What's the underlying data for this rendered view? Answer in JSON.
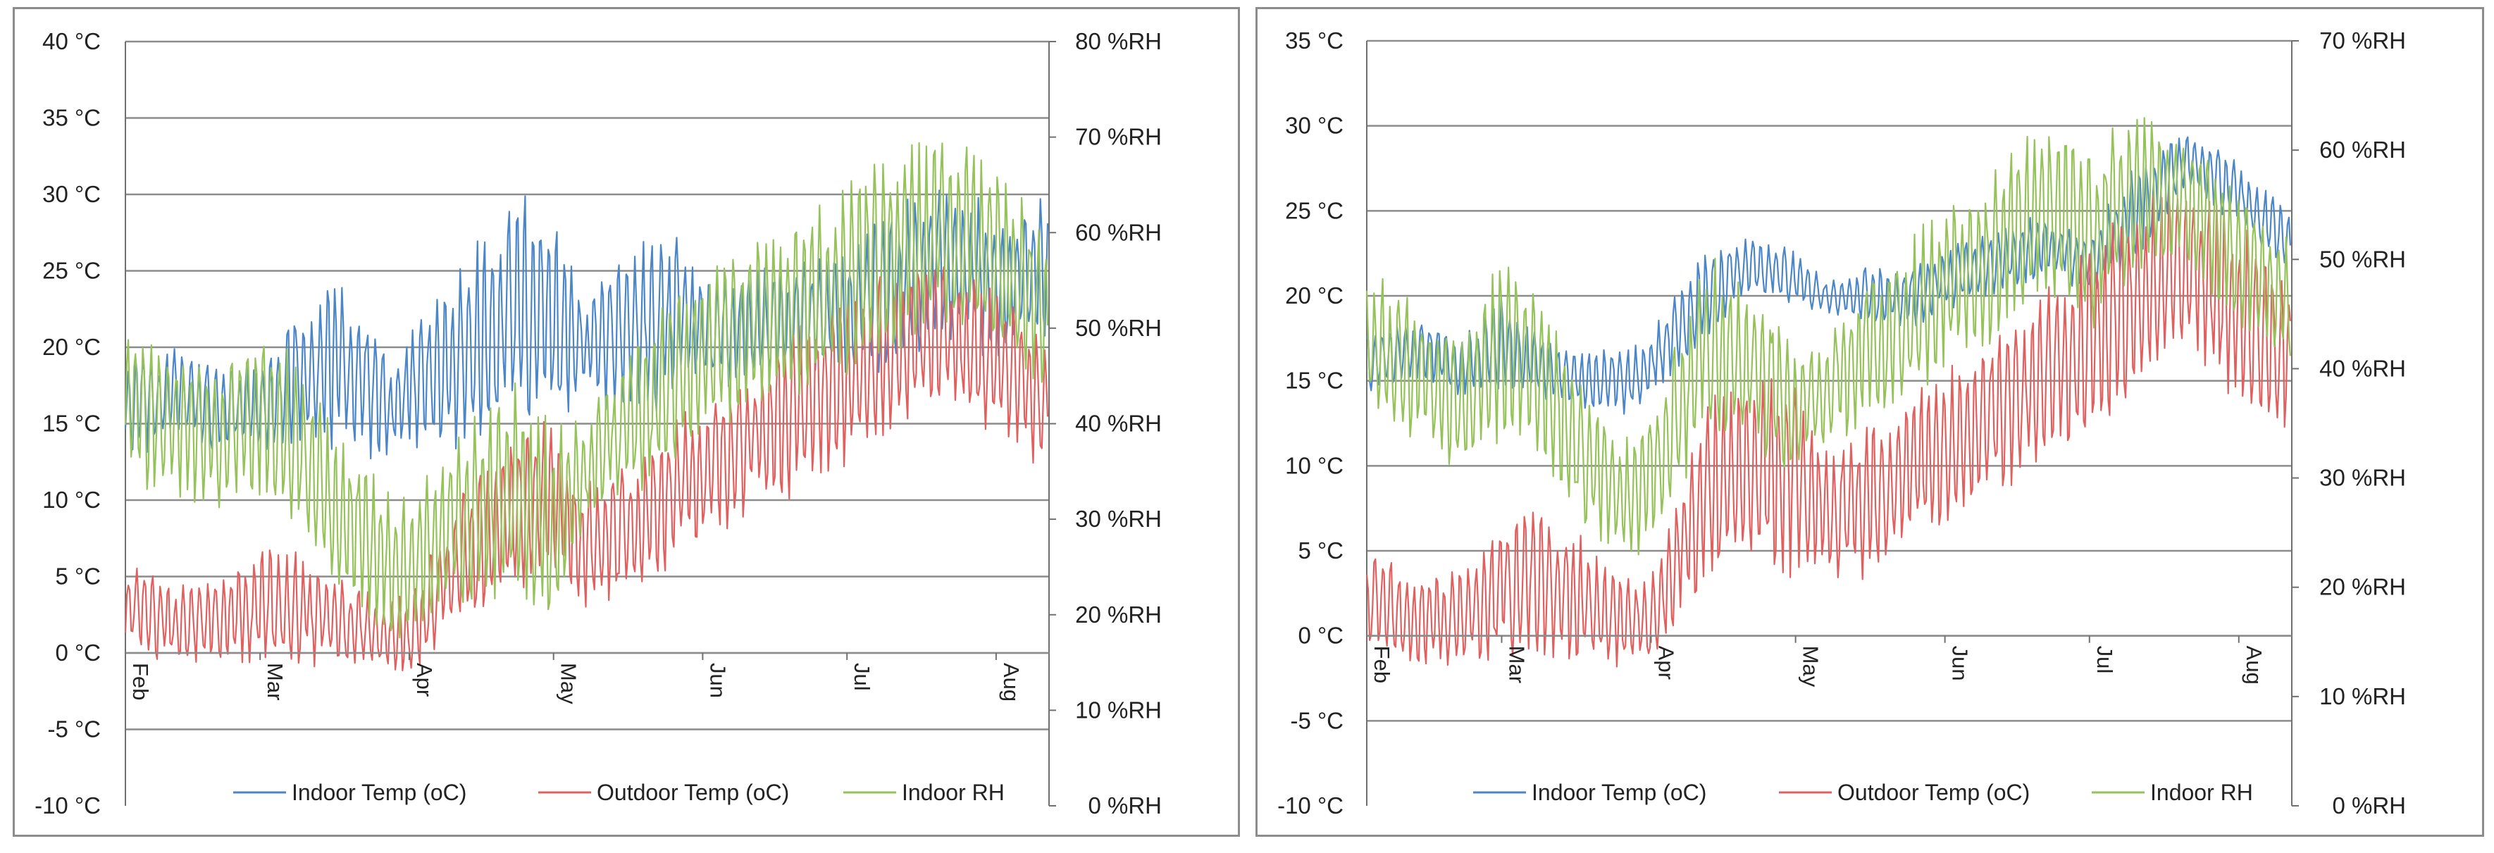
{
  "colors": {
    "indoor_temp": "#4a86c8",
    "outdoor_temp": "#e06060",
    "indoor_rh": "#96c25a",
    "grid": "#8c8c8c",
    "axis": "#707070"
  },
  "chart_data": [
    {
      "type": "line",
      "title": "",
      "xlabel": "",
      "ylabel": "",
      "y_left": {
        "min": -10,
        "max": 40,
        "step": 5,
        "tick_labels": [
          "-10 °C",
          "-5 °C",
          "0 °C",
          "5 °C",
          "10 °C",
          "15 °C",
          "20 °C",
          "25 °C",
          "30 °C",
          "35 °C",
          "40 °C"
        ]
      },
      "y_right": {
        "min": 0,
        "max": 80,
        "step": 10,
        "tick_labels": [
          "0 %RH",
          "10 %RH",
          "20 %RH",
          "30 %RH",
          "40 %RH",
          "50 %RH",
          "60 %RH",
          "70 %RH",
          "80 %RH"
        ]
      },
      "x_axis_at_temp": 0,
      "month_labels": [
        "Feb",
        "Mar",
        "Apr",
        "May",
        "Jun",
        "Jul",
        "Aug"
      ],
      "month_positions_days": [
        0,
        28,
        59,
        89,
        120,
        150,
        181
      ],
      "x_range_days": [
        0,
        192
      ],
      "legend": [
        "Indoor Temp (oC)",
        "Outdoor Temp (oC)",
        "Indoor RH"
      ],
      "legend_position": "bottom",
      "series": [
        {
          "name": "Indoor Temp (oC)",
          "axis": "left",
          "color_key": "indoor_temp",
          "days": [
            0,
            10,
            20,
            28,
            35,
            45,
            55,
            59,
            70,
            80,
            89,
            95,
            105,
            115,
            120,
            130,
            140,
            150,
            160,
            170,
            181,
            192
          ],
          "values": [
            16,
            17,
            16,
            16,
            18,
            19,
            16,
            17,
            20,
            22,
            22,
            20,
            21,
            22,
            21,
            21,
            22,
            22,
            24,
            26,
            24,
            25
          ],
          "amplitude": [
            4,
            3,
            3,
            3,
            5,
            6,
            4,
            4,
            7,
            8,
            8,
            4,
            6,
            6,
            4,
            4,
            4,
            5,
            6,
            6,
            5,
            5
          ]
        },
        {
          "name": "Outdoor Temp (oC)",
          "axis": "left",
          "color_key": "outdoor_temp",
          "days": [
            0,
            10,
            20,
            28,
            35,
            45,
            55,
            59,
            70,
            80,
            89,
            95,
            105,
            115,
            120,
            130,
            140,
            150,
            160,
            170,
            181,
            192
          ],
          "values": [
            3,
            2,
            2,
            3,
            3,
            2,
            1,
            1,
            6,
            9,
            10,
            7,
            8,
            11,
            12,
            14,
            16,
            18,
            20,
            21,
            19,
            16
          ],
          "amplitude": [
            3,
            3,
            3,
            4,
            4,
            3,
            3,
            3,
            5,
            6,
            6,
            4,
            5,
            5,
            5,
            5,
            6,
            6,
            6,
            5,
            5,
            5
          ]
        },
        {
          "name": "Indoor RH",
          "axis": "right",
          "color_key": "indoor_rh",
          "days": [
            0,
            10,
            20,
            28,
            35,
            45,
            55,
            59,
            70,
            80,
            89,
            95,
            105,
            115,
            120,
            130,
            140,
            150,
            160,
            170,
            181,
            192
          ],
          "values": [
            42,
            40,
            38,
            42,
            38,
            30,
            25,
            25,
            30,
            33,
            28,
            35,
            40,
            45,
            47,
            50,
            52,
            55,
            58,
            60,
            58,
            50
          ],
          "amplitude": [
            8,
            8,
            8,
            10,
            10,
            9,
            8,
            8,
            10,
            12,
            12,
            6,
            8,
            10,
            9,
            10,
            10,
            11,
            12,
            11,
            11,
            10
          ]
        }
      ]
    },
    {
      "type": "line",
      "title": "",
      "xlabel": "",
      "ylabel": "",
      "y_left": {
        "min": -10,
        "max": 35,
        "step": 5,
        "tick_labels": [
          "-10 °C",
          "-5 °C",
          "0 °C",
          "5 °C",
          "10 °C",
          "15 °C",
          "20 °C",
          "25 °C",
          "30 °C",
          "35 °C"
        ]
      },
      "y_right": {
        "min": 0,
        "max": 70,
        "step": 10,
        "tick_labels": [
          "0 %RH",
          "10 %RH",
          "20 %RH",
          "30 %RH",
          "40 %RH",
          "50 %RH",
          "60 %RH",
          "70 %RH"
        ]
      },
      "x_axis_at_temp": 0,
      "month_labels": [
        "Feb",
        "Mar",
        "Apr",
        "May",
        "Jun",
        "Jul",
        "Aug"
      ],
      "month_positions_days": [
        0,
        28,
        59,
        89,
        120,
        150,
        181
      ],
      "x_range_days": [
        0,
        192
      ],
      "legend": [
        "Indoor Temp (oC)",
        "Outdoor Temp (oC)",
        "Indoor RH"
      ],
      "legend_position": "bottom",
      "series": [
        {
          "name": "Indoor Temp (oC)",
          "axis": "left",
          "color_key": "indoor_temp",
          "days": [
            0,
            10,
            20,
            28,
            35,
            45,
            55,
            59,
            70,
            80,
            89,
            95,
            105,
            115,
            120,
            130,
            140,
            150,
            160,
            170,
            181,
            192
          ],
          "values": [
            16,
            17,
            16,
            17,
            16,
            15,
            15,
            16,
            20,
            22,
            21,
            20,
            20,
            20,
            21,
            22,
            23,
            22,
            25,
            28,
            26,
            23
          ],
          "amplitude": [
            2,
            2,
            2,
            3,
            2,
            2,
            2,
            2,
            3,
            2,
            2,
            1,
            2,
            2,
            2,
            2,
            2,
            2,
            3,
            2,
            2,
            2
          ]
        },
        {
          "name": "Outdoor Temp (oC)",
          "axis": "left",
          "color_key": "outdoor_temp",
          "days": [
            0,
            10,
            20,
            28,
            35,
            45,
            55,
            59,
            70,
            80,
            89,
            95,
            105,
            115,
            120,
            130,
            140,
            150,
            160,
            170,
            181,
            192
          ],
          "values": [
            2,
            1,
            1,
            3,
            3,
            2,
            1,
            1,
            8,
            10,
            9,
            7,
            8,
            10,
            11,
            13,
            15,
            17,
            20,
            22,
            19,
            16
          ],
          "amplitude": [
            3,
            3,
            3,
            5,
            5,
            4,
            3,
            3,
            6,
            6,
            6,
            4,
            5,
            5,
            5,
            5,
            6,
            6,
            6,
            5,
            6,
            5
          ]
        },
        {
          "name": "Indoor RH",
          "axis": "right",
          "color_key": "indoor_rh",
          "days": [
            0,
            10,
            20,
            28,
            35,
            45,
            55,
            59,
            70,
            80,
            89,
            95,
            105,
            115,
            120,
            130,
            140,
            150,
            160,
            170,
            181,
            192
          ],
          "values": [
            42,
            40,
            36,
            42,
            40,
            32,
            28,
            30,
            42,
            40,
            36,
            38,
            42,
            45,
            48,
            50,
            55,
            52,
            56,
            55,
            50,
            46
          ],
          "amplitude": [
            7,
            7,
            7,
            9,
            8,
            7,
            6,
            7,
            9,
            8,
            8,
            5,
            8,
            8,
            8,
            9,
            9,
            9,
            8,
            7,
            7,
            7
          ]
        }
      ]
    }
  ]
}
